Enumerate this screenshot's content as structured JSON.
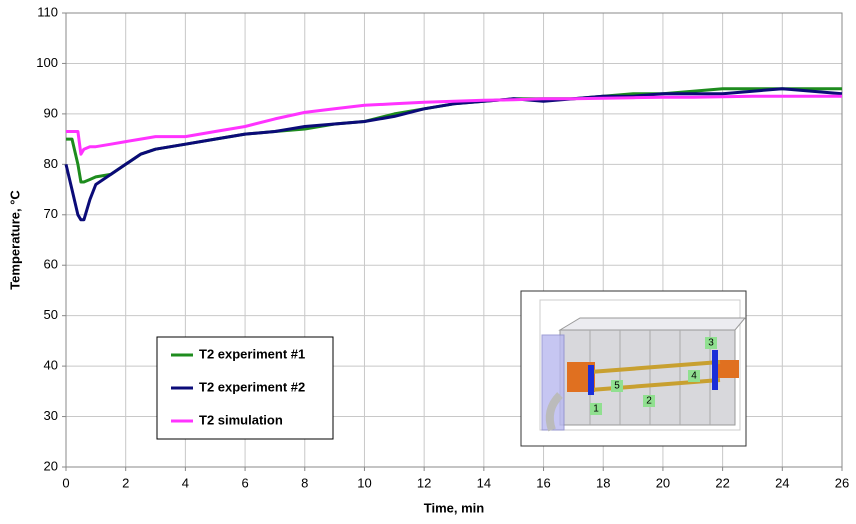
{
  "chart_data": {
    "type": "line",
    "x_label": "Time, min",
    "y_label": "Temperature, °C",
    "x": [
      0,
      0.2,
      0.4,
      0.5,
      0.6,
      0.8,
      1,
      1.5,
      2,
      2.5,
      3,
      4,
      5,
      6,
      7,
      8,
      9,
      10,
      11,
      12,
      13,
      14,
      15,
      16,
      17,
      18,
      19,
      20,
      21,
      22,
      23,
      24,
      25,
      26
    ],
    "series": [
      {
        "name": "T2 experiment #1",
        "color": "#1e8c1e",
        "values": [
          85,
          85,
          80,
          76.5,
          76.5,
          77,
          77.5,
          78,
          80,
          82,
          83,
          84,
          85,
          86,
          86.5,
          87,
          88,
          88.5,
          90,
          91,
          92,
          92.5,
          93,
          93,
          93,
          93.5,
          94,
          94,
          94.5,
          95,
          95,
          95,
          95,
          95
        ]
      },
      {
        "name": "T2 experiment #2",
        "color": "#0b0b78",
        "values": [
          80,
          75,
          70,
          69,
          69,
          73,
          76,
          78,
          80,
          82,
          83,
          84,
          85,
          86,
          86.5,
          87.5,
          88,
          88.5,
          89.5,
          91,
          92,
          92.5,
          93,
          92.5,
          93,
          93.5,
          93.5,
          94,
          94,
          94,
          94.5,
          95,
          94.5,
          94
        ]
      },
      {
        "name": "T2 simulation",
        "color": "#ff33ff",
        "values": [
          86.5,
          86.5,
          86.5,
          82,
          83,
          83.5,
          83.5,
          84,
          84.5,
          85,
          85.5,
          85.5,
          86.5,
          87.5,
          89,
          90.3,
          91,
          91.7,
          92,
          92.3,
          92.5,
          92.7,
          92.8,
          93,
          93,
          93.1,
          93.2,
          93.3,
          93.3,
          93.4,
          93.5,
          93.5,
          93.5,
          93.5
        ]
      }
    ],
    "xlim": [
      0,
      26
    ],
    "xticks": [
      0,
      2,
      4,
      6,
      8,
      10,
      12,
      14,
      16,
      18,
      20,
      22,
      24,
      26
    ],
    "ylim": [
      20,
      110
    ],
    "yticks": [
      20,
      30,
      40,
      50,
      60,
      70,
      80,
      90,
      100,
      110
    ],
    "grid": true,
    "legend": "lower left"
  },
  "inset_labels": [
    "1",
    "2",
    "3",
    "4",
    "5"
  ]
}
